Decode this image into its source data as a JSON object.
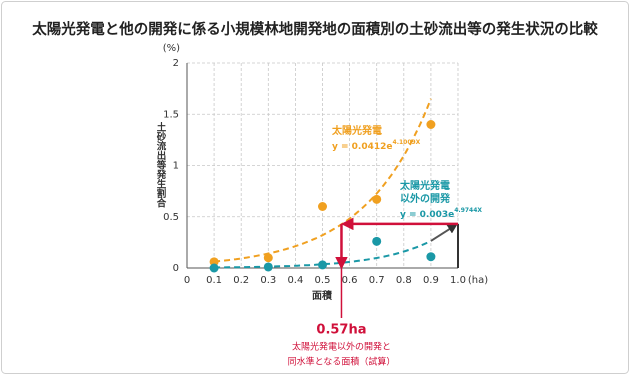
{
  "chart_data": {
    "type": "scatter",
    "title": "太陽光発電と他の開発に係る小規模林地開発地の面積別の土砂流出等の発生状況の比較",
    "y_unit": "(%)",
    "y_label": "土砂流出等発生割合",
    "x_label": "面積",
    "x_unit": "(ha)",
    "x": [
      0.1,
      0.3,
      0.5,
      0.7,
      0.9
    ],
    "series": [
      {
        "name": [
          "太陽光発電"
        ],
        "color": "#f0a020",
        "values": [
          0.06,
          0.1,
          0.6,
          0.67,
          1.4
        ],
        "trend": {
          "a": 0.0412,
          "b": 4.1009,
          "label": "y = 0.0412e",
          "exponent": "4.1009X"
        }
      },
      {
        "name": [
          "太陽光発電",
          "以外の開発"
        ],
        "color": "#1a98a6",
        "values": [
          0,
          0.01,
          0.03,
          0.26,
          0.11
        ],
        "trend": {
          "a": 0.003,
          "b": 4.9744,
          "label": "y = 0.003e",
          "exponent": "4.9744X"
        }
      }
    ],
    "xlim": [
      0,
      1
    ],
    "xticks": [
      0,
      0.1,
      0.2,
      0.3,
      0.4,
      0.5,
      0.6,
      0.7,
      0.8,
      0.9,
      {
        "value": 1,
        "label": "1.0"
      }
    ],
    "ylim": [
      0,
      2
    ],
    "yticks": [
      0,
      0.5,
      1,
      1.5,
      2
    ],
    "grid": true,
    "annotation": {
      "value": 0.57,
      "label": "0.57ha",
      "level": 0.43,
      "color": "#d0103a",
      "text": [
        "太陽光発電以外の開発と",
        "同水準となる面積（試算）"
      ]
    }
  }
}
